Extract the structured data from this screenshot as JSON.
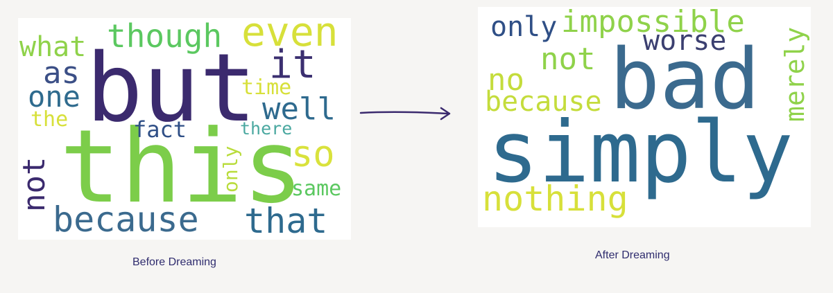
{
  "before": {
    "caption": "Before Dreaming",
    "words": [
      {
        "text": "but",
        "color": "#3b2a6e"
      },
      {
        "text": "this",
        "color": "#7ccd4a"
      },
      {
        "text": "even",
        "color": "#d7e03a"
      },
      {
        "text": "though",
        "color": "#5bc860"
      },
      {
        "text": "what",
        "color": "#8fd24a"
      },
      {
        "text": "as",
        "color": "#3b4f86"
      },
      {
        "text": "one",
        "color": "#2f6b8e"
      },
      {
        "text": "it",
        "color": "#3b2f70"
      },
      {
        "text": "time",
        "color": "#d7e03a"
      },
      {
        "text": "well",
        "color": "#2e6a8e"
      },
      {
        "text": "the",
        "color": "#d7e03a"
      },
      {
        "text": "fact",
        "color": "#2f4f86"
      },
      {
        "text": "there",
        "color": "#4aa8a0"
      },
      {
        "text": "so",
        "color": "#d9e23c"
      },
      {
        "text": "only",
        "color": "#b9dc3c"
      },
      {
        "text": "same",
        "color": "#5bc860"
      },
      {
        "text": "not",
        "color": "#3b2a6e"
      },
      {
        "text": "because",
        "color": "#3b6a8e"
      },
      {
        "text": "that",
        "color": "#2e6a8e"
      }
    ]
  },
  "after": {
    "caption": "After Dreaming",
    "words": [
      {
        "text": "only",
        "color": "#2f4f86"
      },
      {
        "text": "impossible",
        "color": "#8fd24a"
      },
      {
        "text": "worse",
        "color": "#3b3f70"
      },
      {
        "text": "not",
        "color": "#8fd24a"
      },
      {
        "text": "merely",
        "color": "#8fd24a"
      },
      {
        "text": "no",
        "color": "#c4dc3c"
      },
      {
        "text": "because",
        "color": "#c4dc3c"
      },
      {
        "text": "bad",
        "color": "#3b6a8e"
      },
      {
        "text": "simply",
        "color": "#2e6a8e"
      },
      {
        "text": "nothing",
        "color": "#d7e03a"
      }
    ]
  },
  "arrow_color": "#3b2a6e"
}
